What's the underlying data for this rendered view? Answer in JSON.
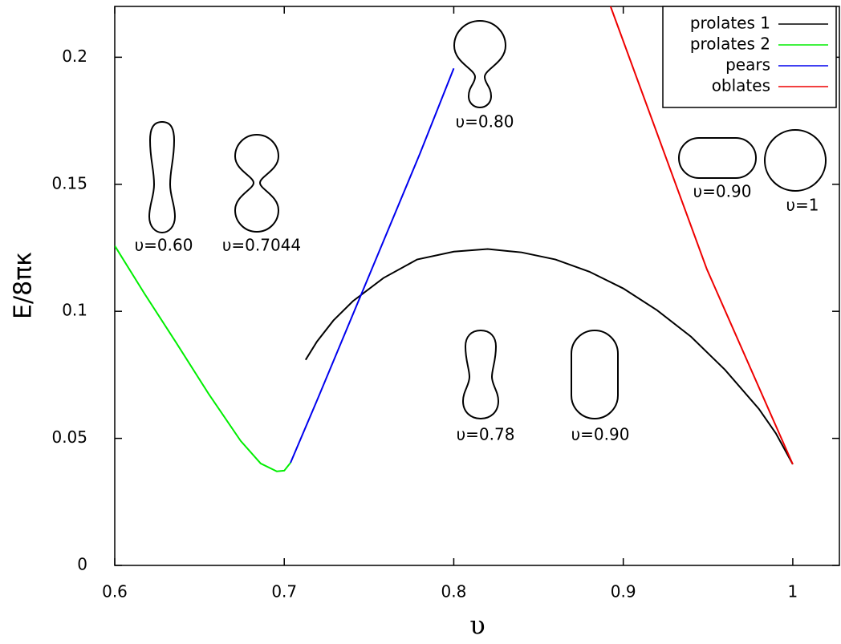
{
  "chart_data": {
    "type": "line",
    "x_label": "υ",
    "y_label": "E/8πκ",
    "xlim": [
      0.6,
      1.0275
    ],
    "ylim": [
      0,
      0.22
    ],
    "xticks": [
      0.6,
      0.7,
      0.8,
      0.9,
      1
    ],
    "yticks": [
      0,
      0.05,
      0.1,
      0.15,
      0.2
    ],
    "legend": "top-right",
    "series": [
      {
        "name": "prolates 1",
        "color": "#000000",
        "x": [
          0.7126,
          0.7193,
          0.729,
          0.7405,
          0.7585,
          0.7784,
          0.8,
          0.82,
          0.84,
          0.86,
          0.88,
          0.9,
          0.92,
          0.94,
          0.96,
          0.98,
          0.99,
          1.0
        ],
        "values": [
          0.0809,
          0.0881,
          0.0964,
          0.104,
          0.1131,
          0.1204,
          0.1235,
          0.1245,
          0.1232,
          0.1204,
          0.1156,
          0.109,
          0.1004,
          0.09,
          0.077,
          0.0616,
          0.052,
          0.0398
        ]
      },
      {
        "name": "prolates 2",
        "color": "#00ee00",
        "x": [
          0.6,
          0.6175,
          0.6364,
          0.6553,
          0.6743,
          0.6861,
          0.6956,
          0.7,
          0.7037
        ],
        "values": [
          0.1258,
          0.107,
          0.0875,
          0.0676,
          0.049,
          0.0401,
          0.037,
          0.0373,
          0.0404
        ]
      },
      {
        "name": "pears",
        "color": "#0000ee",
        "x": [
          0.7037,
          0.72,
          0.75,
          0.78,
          0.8
        ],
        "values": [
          0.0404,
          0.066,
          0.114,
          0.162,
          0.1956
        ]
      },
      {
        "name": "oblates",
        "color": "#ee0000",
        "x": [
          0.8925,
          0.9493,
          1.0
        ],
        "values": [
          0.22,
          0.1166,
          0.0398
        ]
      }
    ],
    "annotations": [
      "υ=0.60",
      "υ=0.7044",
      "υ=0.80",
      "υ=0.90",
      "υ=1",
      "υ=0.78",
      "υ=0.90"
    ]
  }
}
